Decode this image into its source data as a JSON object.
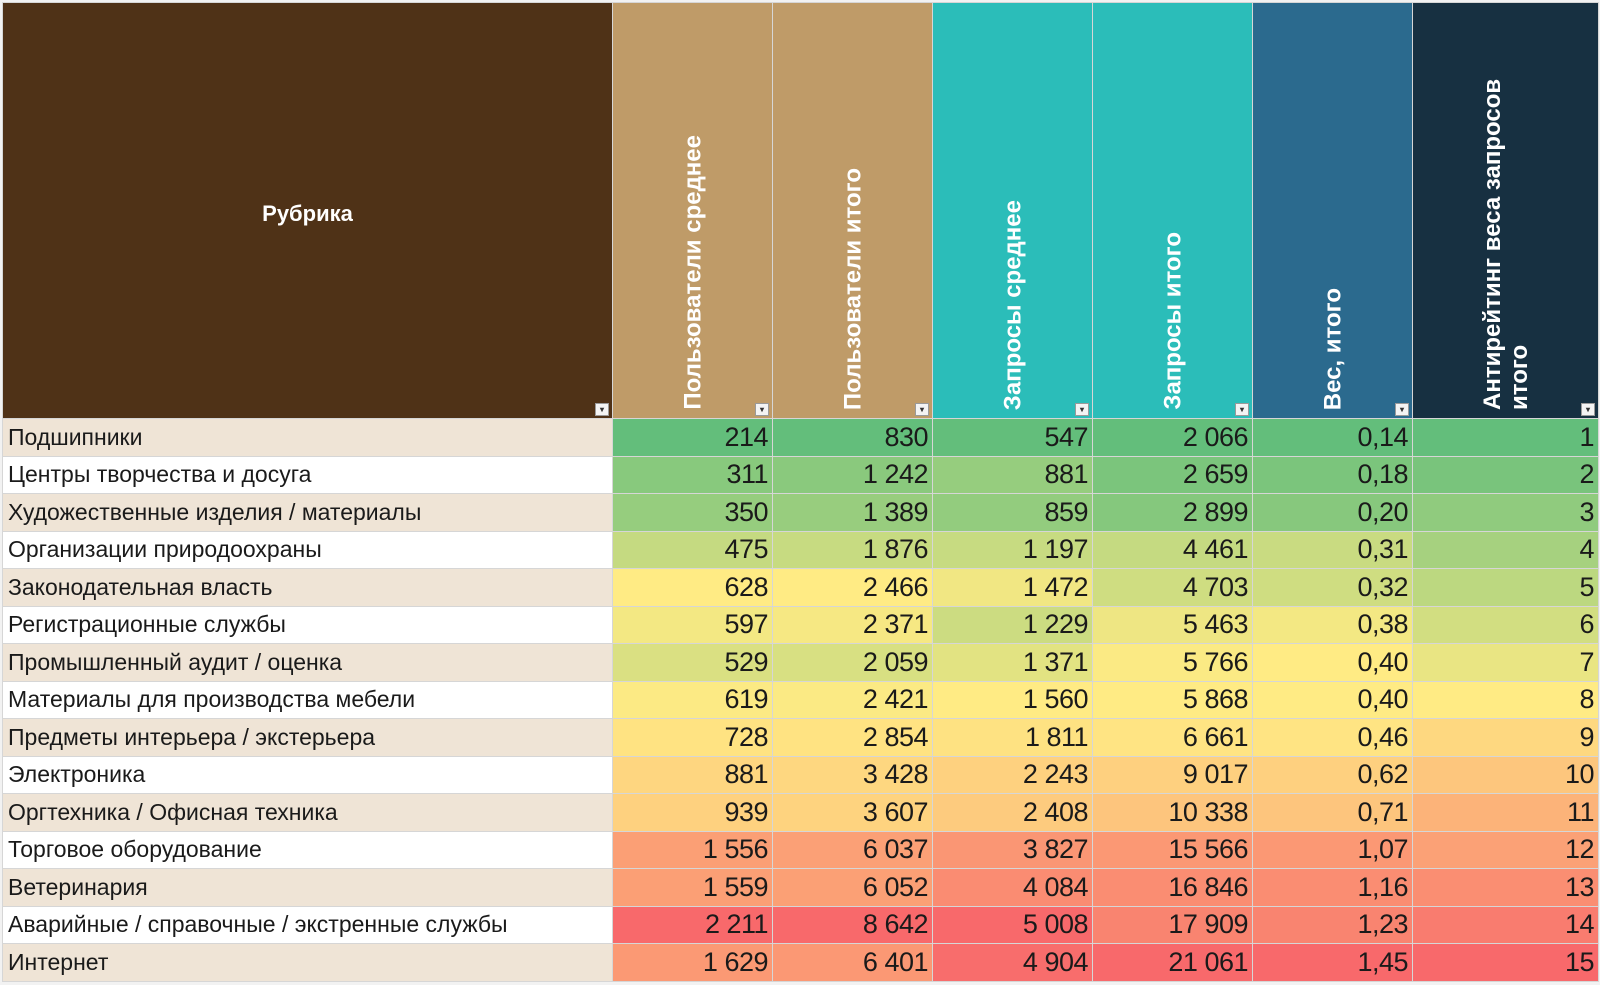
{
  "table": {
    "columns": [
      {
        "key": "rubric",
        "label": "Рубрика",
        "bg": "#4f3217"
      },
      {
        "key": "users_avg",
        "label": "Пользователи среднее",
        "bg": "#bf9b68"
      },
      {
        "key": "users_total",
        "label": "Пользователи итого",
        "bg": "#bf9b68"
      },
      {
        "key": "req_avg",
        "label": "Запросы среднее",
        "bg": "#2bbdb9"
      },
      {
        "key": "req_total",
        "label": "Запросы итого",
        "bg": "#2bbdb9"
      },
      {
        "key": "weight",
        "label": "Вес, итого",
        "bg": "#2b6a8e"
      },
      {
        "key": "antirating",
        "label": "Антирейтинг веса запросов итого",
        "bg": "#173041"
      }
    ],
    "filter_icon": "dropdown-arrow-icon",
    "rows": [
      {
        "rubric": "Подшипники",
        "users_avg": "214",
        "users_total": "830",
        "req_avg": "547",
        "req_total": "2 066",
        "weight": "0,14",
        "antirating": "1"
      },
      {
        "rubric": "Центры творчества и досуга",
        "users_avg": "311",
        "users_total": "1 242",
        "req_avg": "881",
        "req_total": "2 659",
        "weight": "0,18",
        "antirating": "2"
      },
      {
        "rubric": "Художественные изделия / материалы",
        "users_avg": "350",
        "users_total": "1 389",
        "req_avg": "859",
        "req_total": "2 899",
        "weight": "0,20",
        "antirating": "3"
      },
      {
        "rubric": "Организации природоохраны",
        "users_avg": "475",
        "users_total": "1 876",
        "req_avg": "1 197",
        "req_total": "4 461",
        "weight": "0,31",
        "antirating": "4"
      },
      {
        "rubric": "Законодательная власть",
        "users_avg": "628",
        "users_total": "2 466",
        "req_avg": "1 472",
        "req_total": "4 703",
        "weight": "0,32",
        "antirating": "5"
      },
      {
        "rubric": "Регистрационные службы",
        "users_avg": "597",
        "users_total": "2 371",
        "req_avg": "1 229",
        "req_total": "5 463",
        "weight": "0,38",
        "antirating": "6"
      },
      {
        "rubric": "Промышленный аудит / оценка",
        "users_avg": "529",
        "users_total": "2 059",
        "req_avg": "1 371",
        "req_total": "5 766",
        "weight": "0,40",
        "antirating": "7"
      },
      {
        "rubric": "Материалы для производства мебели",
        "users_avg": "619",
        "users_total": "2 421",
        "req_avg": "1 560",
        "req_total": "5 868",
        "weight": "0,40",
        "antirating": "8"
      },
      {
        "rubric": "Предметы интерьера / экстерьера",
        "users_avg": "728",
        "users_total": "2 854",
        "req_avg": "1 811",
        "req_total": "6 661",
        "weight": "0,46",
        "antirating": "9"
      },
      {
        "rubric": "Электроника",
        "users_avg": "881",
        "users_total": "3 428",
        "req_avg": "2 243",
        "req_total": "9 017",
        "weight": "0,62",
        "antirating": "10"
      },
      {
        "rubric": "Оргтехника / Офисная техника",
        "users_avg": "939",
        "users_total": "3 607",
        "req_avg": "2 408",
        "req_total": "10 338",
        "weight": "0,71",
        "antirating": "11"
      },
      {
        "rubric": "Торговое оборудование",
        "users_avg": "1 556",
        "users_total": "6 037",
        "req_avg": "3 827",
        "req_total": "15 566",
        "weight": "1,07",
        "antirating": "12"
      },
      {
        "rubric": "Ветеринария",
        "users_avg": "1 559",
        "users_total": "6 052",
        "req_avg": "4 084",
        "req_total": "16 846",
        "weight": "1,16",
        "antirating": "13"
      },
      {
        "rubric": "Аварийные / справочные / экстренные службы",
        "users_avg": "2 211",
        "users_total": "8 642",
        "req_avg": "5 008",
        "req_total": "17 909",
        "weight": "1,23",
        "antirating": "14"
      },
      {
        "rubric": "Интернет",
        "users_avg": "1 629",
        "users_total": "6 401",
        "req_avg": "4 904",
        "req_total": "21 061",
        "weight": "1,45",
        "antirating": "15"
      }
    ]
  },
  "colors": {
    "scale_low": "#63be7b",
    "scale_mid": "#ffeb84",
    "scale_high": "#f8696b",
    "rubric_odd_bg": "#efe4d6",
    "rubric_even_bg": "#ffffff"
  }
}
